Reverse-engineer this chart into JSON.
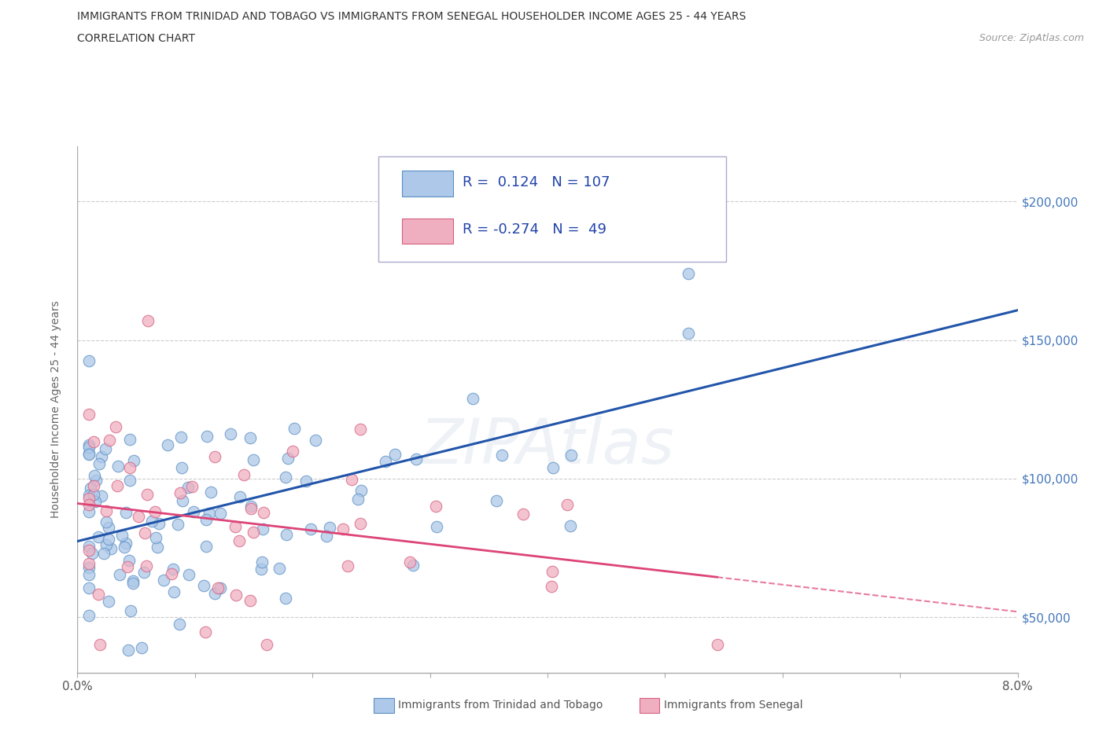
{
  "title_line1": "IMMIGRANTS FROM TRINIDAD AND TOBAGO VS IMMIGRANTS FROM SENEGAL HOUSEHOLDER INCOME AGES 25 - 44 YEARS",
  "title_line2": "CORRELATION CHART",
  "source_text": "Source: ZipAtlas.com",
  "ylabel": "Householder Income Ages 25 - 44 years",
  "xlim": [
    0.0,
    0.08
  ],
  "ylim": [
    30000,
    220000
  ],
  "ytick_positions": [
    50000,
    100000,
    150000,
    200000
  ],
  "ytick_labels": [
    "$50,000",
    "$100,000",
    "$150,000",
    "$200,000"
  ],
  "watermark": "ZIPAtlas",
  "series1_color": "#adc8e8",
  "series1_edge_color": "#5b8fc4",
  "series2_color": "#f0afc0",
  "series2_edge_color": "#d46080",
  "line1_color": "#2255aa",
  "line2_color": "#dd4477",
  "R1": 0.124,
  "N1": 107,
  "R2": -0.274,
  "N2": 49,
  "legend_label1": "Immigrants from Trinidad and Tobago",
  "legend_label2": "Immigrants from Senegal",
  "background_color": "#ffffff",
  "grid_color": "#cccccc",
  "legend_text_color": "#2244aa"
}
